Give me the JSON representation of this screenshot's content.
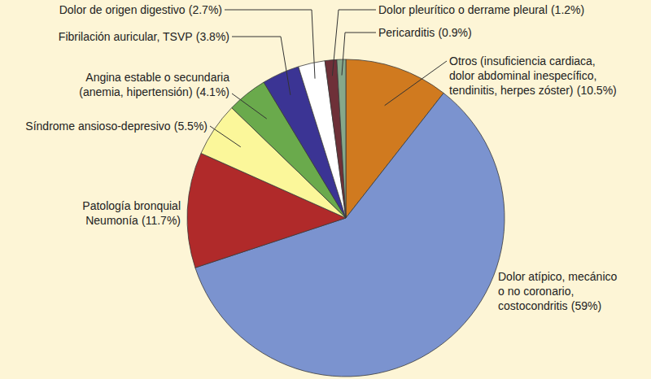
{
  "chart_data": {
    "type": "pie",
    "categories": [
      "Otros (insuficiencia cardiaca,\ndolor abdominal inespecífico,\ntendinitis, herpes zóster)",
      "Dolor atípico, mecánico\no no coronario,\ncostocondritis",
      "Patología bronquial\nNeumonía",
      "Síndrome ansioso-depresivo",
      "Angina estable o secundaria\n(anemia, hipertensión)",
      "Fibrilación auricular, TSVP",
      "Dolor de origen digestivo",
      "Dolor pleurítico o derrame pleural",
      "Pericarditis"
    ],
    "values": [
      10.5,
      59,
      11.7,
      5.5,
      4.1,
      3.8,
      2.7,
      1.2,
      0.9
    ],
    "value_labels": [
      "(10.5%)",
      "(59%)",
      "(11.7%)",
      "(5.5%)",
      "(4.1%)",
      "(3.8%)",
      "(2.7%)",
      "(1.2%)",
      "(0.9%)"
    ],
    "colors": [
      "#d07a1f",
      "#7b93cf",
      "#b02a2a",
      "#fbf79a",
      "#6aaa4c",
      "#3b3494",
      "#ffffff",
      "#6e3038",
      "#86a88a"
    ],
    "data_labels": true
  }
}
